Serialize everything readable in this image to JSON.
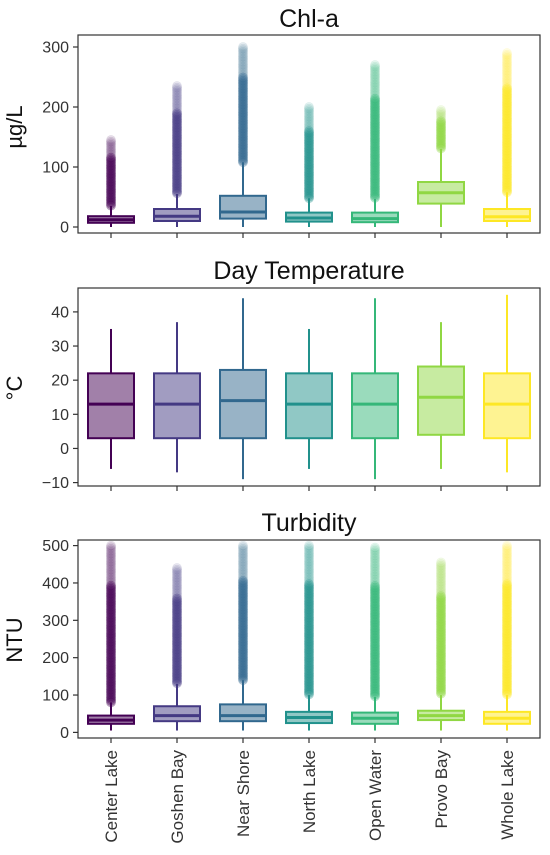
{
  "categories": [
    "Center Lake",
    "Goshen Bay",
    "Near Shore",
    "North Lake",
    "Open Water",
    "Provo Bay",
    "Whole Lake"
  ],
  "colors": [
    "#440154",
    "#443983",
    "#31688e",
    "#21918c",
    "#35b779",
    "#90d743",
    "#fde725"
  ],
  "chart_data": [
    {
      "type": "box",
      "title": "Chl-a",
      "ylabel": "µg/L",
      "ylim": [
        -10,
        320
      ],
      "yticks": [
        0,
        100,
        200,
        300
      ],
      "categories": [
        "Center Lake",
        "Goshen Bay",
        "Near Shore",
        "North Lake",
        "Open Water",
        "Provo Bay",
        "Whole Lake"
      ],
      "boxes": [
        {
          "category": "Center Lake",
          "q1": 7,
          "median": 12,
          "q3": 18,
          "whisker_low": 0,
          "whisker_high": 35,
          "outliers_high": [
            35,
            145
          ]
        },
        {
          "category": "Goshen Bay",
          "q1": 10,
          "median": 18,
          "q3": 30,
          "whisker_low": 0,
          "whisker_high": 55,
          "outliers_high": [
            55,
            235
          ]
        },
        {
          "category": "Near Shore",
          "q1": 14,
          "median": 25,
          "q3": 52,
          "whisker_low": 0,
          "whisker_high": 108,
          "outliers_high": [
            108,
            300
          ]
        },
        {
          "category": "North Lake",
          "q1": 9,
          "median": 15,
          "q3": 24,
          "whisker_low": 0,
          "whisker_high": 48,
          "outliers_high": [
            48,
            200
          ]
        },
        {
          "category": "Open Water",
          "q1": 8,
          "median": 14,
          "q3": 24,
          "whisker_low": 0,
          "whisker_high": 47,
          "outliers_high": [
            47,
            270
          ]
        },
        {
          "category": "Provo Bay",
          "q1": 39,
          "median": 57,
          "q3": 75,
          "whisker_low": 0,
          "whisker_high": 130,
          "outliers_high": [
            130,
            195
          ]
        },
        {
          "category": "Whole Lake",
          "q1": 10,
          "median": 17,
          "q3": 30,
          "whisker_low": 0,
          "whisker_high": 58,
          "outliers_high": [
            58,
            290
          ]
        }
      ]
    },
    {
      "type": "box",
      "title": "Day Temperature",
      "ylabel": "°C",
      "ylim": [
        -11,
        47
      ],
      "yticks": [
        -10,
        0,
        10,
        20,
        30,
        40
      ],
      "categories": [
        "Center Lake",
        "Goshen Bay",
        "Near Shore",
        "North Lake",
        "Open Water",
        "Provo Bay",
        "Whole Lake"
      ],
      "boxes": [
        {
          "category": "Center Lake",
          "q1": 3,
          "median": 13,
          "q3": 22,
          "whisker_low": -6,
          "whisker_high": 35,
          "outliers_high": []
        },
        {
          "category": "Goshen Bay",
          "q1": 3,
          "median": 13,
          "q3": 22,
          "whisker_low": -7,
          "whisker_high": 37,
          "outliers_high": []
        },
        {
          "category": "Near Shore",
          "q1": 3,
          "median": 14,
          "q3": 23,
          "whisker_low": -9,
          "whisker_high": 44,
          "outliers_high": []
        },
        {
          "category": "North Lake",
          "q1": 3,
          "median": 13,
          "q3": 22,
          "whisker_low": -6,
          "whisker_high": 35,
          "outliers_high": []
        },
        {
          "category": "Open Water",
          "q1": 3,
          "median": 13,
          "q3": 22,
          "whisker_low": -9,
          "whisker_high": 44,
          "outliers_high": []
        },
        {
          "category": "Provo Bay",
          "q1": 4,
          "median": 15,
          "q3": 24,
          "whisker_low": -6,
          "whisker_high": 37,
          "outliers_high": []
        },
        {
          "category": "Whole Lake",
          "q1": 3,
          "median": 13,
          "q3": 22,
          "whisker_low": -7,
          "whisker_high": 45,
          "outliers_high": []
        }
      ]
    },
    {
      "type": "box",
      "title": "Turbidity",
      "ylabel": "NTU",
      "ylim": [
        -15,
        515
      ],
      "yticks": [
        0,
        100,
        200,
        300,
        400,
        500
      ],
      "categories": [
        "Center Lake",
        "Goshen Bay",
        "Near Shore",
        "North Lake",
        "Open Water",
        "Provo Bay",
        "Whole Lake"
      ],
      "boxes": [
        {
          "category": "Center Lake",
          "q1": 23,
          "median": 33,
          "q3": 45,
          "whisker_low": 5,
          "whisker_high": 80,
          "outliers_high": [
            80,
            500
          ]
        },
        {
          "category": "Goshen Bay",
          "q1": 30,
          "median": 45,
          "q3": 70,
          "whisker_low": 5,
          "whisker_high": 130,
          "outliers_high": [
            130,
            440
          ]
        },
        {
          "category": "Near Shore",
          "q1": 30,
          "median": 45,
          "q3": 75,
          "whisker_low": 5,
          "whisker_high": 140,
          "outliers_high": [
            140,
            500
          ]
        },
        {
          "category": "North Lake",
          "q1": 25,
          "median": 40,
          "q3": 55,
          "whisker_low": 5,
          "whisker_high": 100,
          "outliers_high": [
            100,
            500
          ]
        },
        {
          "category": "Open Water",
          "q1": 23,
          "median": 38,
          "q3": 53,
          "whisker_low": 5,
          "whisker_high": 95,
          "outliers_high": [
            95,
            495
          ]
        },
        {
          "category": "Provo Bay",
          "q1": 33,
          "median": 45,
          "q3": 58,
          "whisker_low": 5,
          "whisker_high": 100,
          "outliers_high": [
            100,
            455
          ]
        },
        {
          "category": "Whole Lake",
          "q1": 23,
          "median": 38,
          "q3": 55,
          "whisker_low": 5,
          "whisker_high": 100,
          "outliers_high": [
            100,
            500
          ]
        }
      ]
    }
  ]
}
